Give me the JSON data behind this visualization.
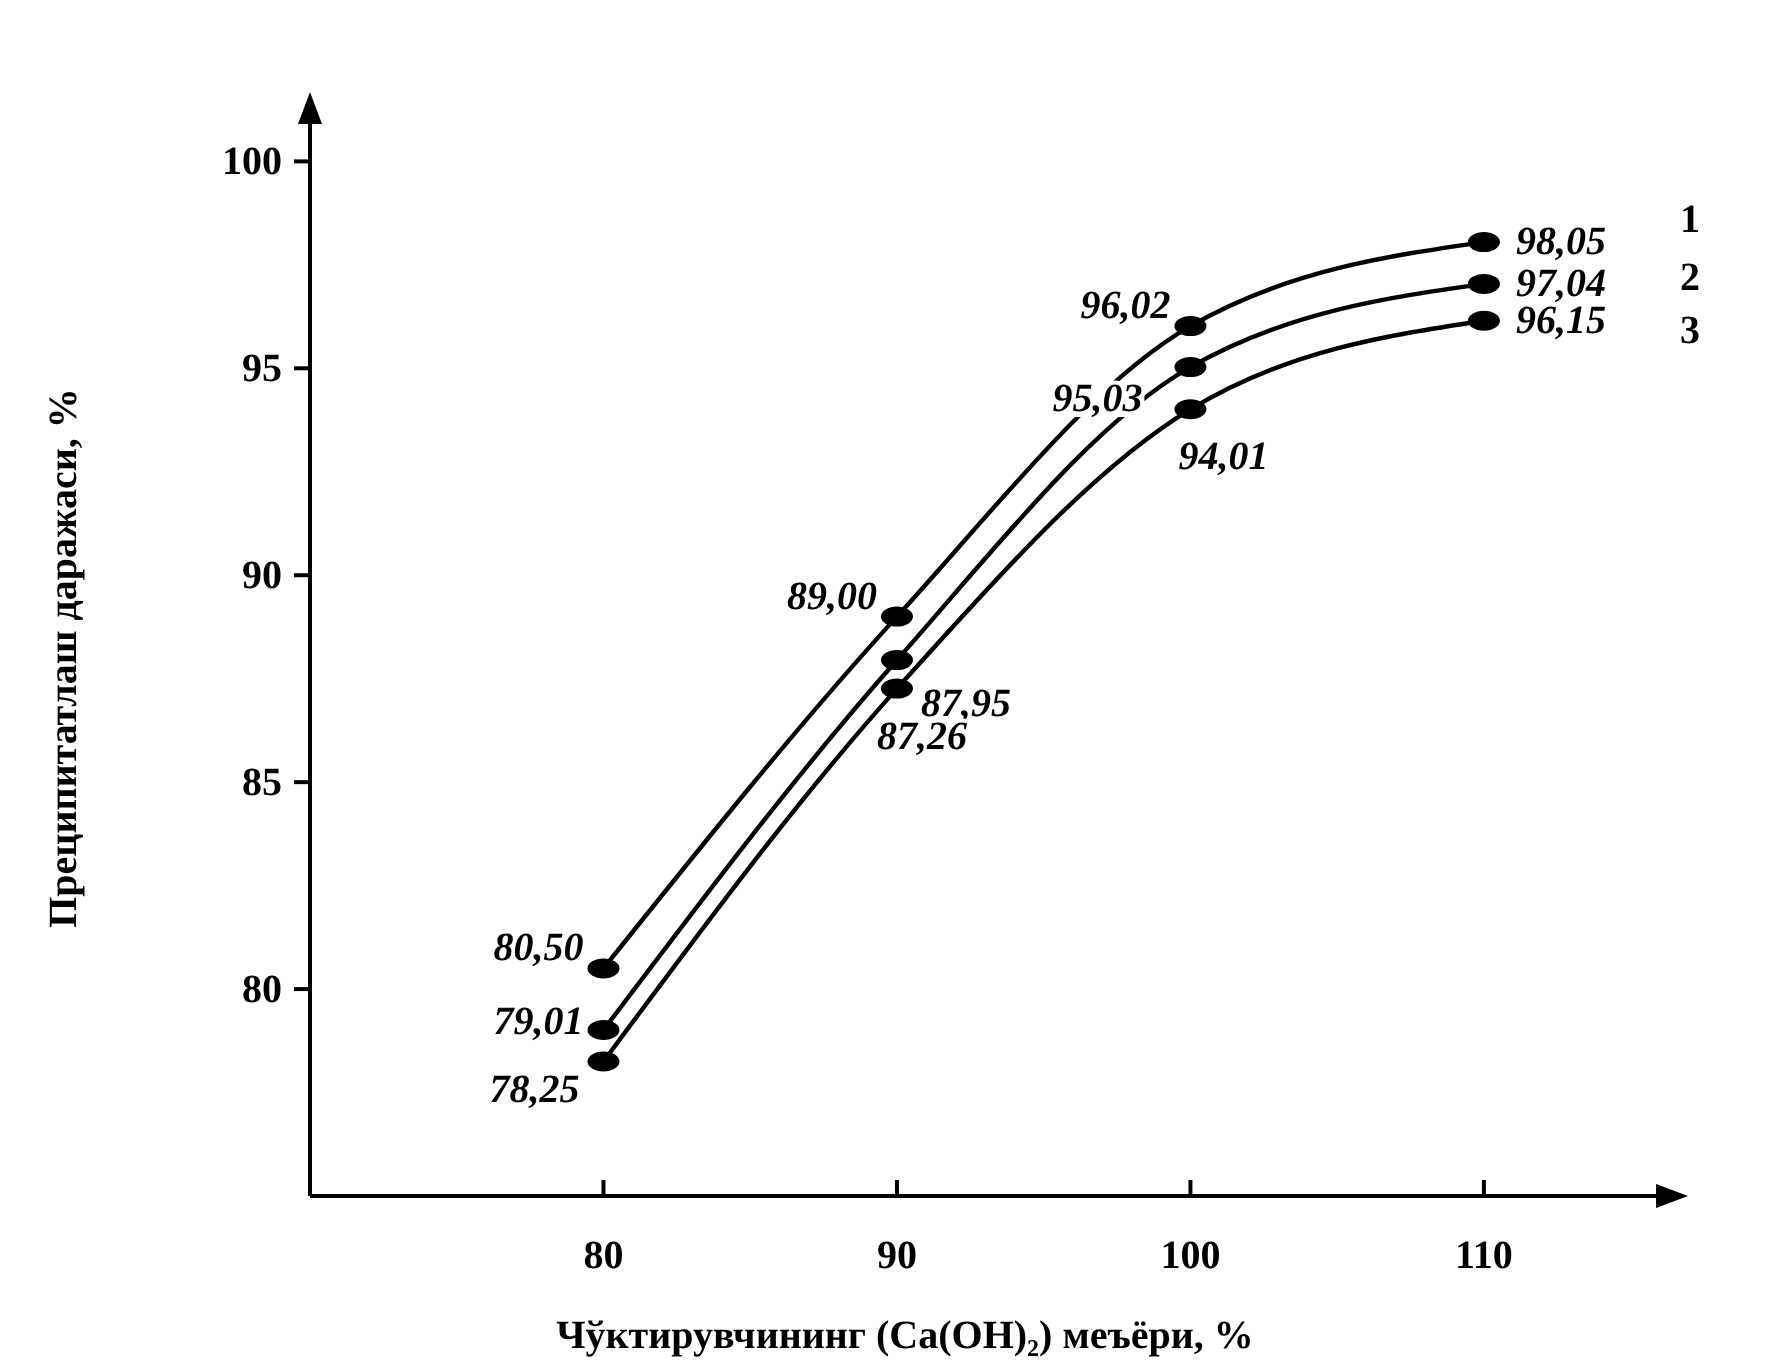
{
  "chart_data": {
    "type": "line",
    "xlabel": "Чўктирувчининг (Ca(OH)₂) меъёри, %",
    "ylabel": "Преципитатлаш даражаси, %",
    "x": [
      80,
      90,
      100,
      110
    ],
    "xlim": [
      70,
      116
    ],
    "xticks": [
      80,
      90,
      100,
      110
    ],
    "ylim": [
      75,
      101
    ],
    "yticks": [
      80,
      85,
      90,
      95,
      100
    ],
    "marker": "circle",
    "grid": false,
    "series": [
      {
        "name": "1",
        "color": "#000000",
        "values": [
          80.5,
          89.0,
          96.02,
          98.05
        ],
        "value_labels": [
          "80,50",
          "89,00",
          "96,02",
          "98,05"
        ]
      },
      {
        "name": "2",
        "color": "#000000",
        "values": [
          79.01,
          87.95,
          95.03,
          97.04
        ],
        "value_labels": [
          "79,01",
          "87,95",
          "95,03",
          "97,04"
        ]
      },
      {
        "name": "3",
        "color": "#000000",
        "values": [
          78.25,
          87.26,
          94.01,
          96.15
        ],
        "value_labels": [
          "78,25",
          "87,26",
          "94,01",
          "96,15"
        ]
      }
    ]
  }
}
